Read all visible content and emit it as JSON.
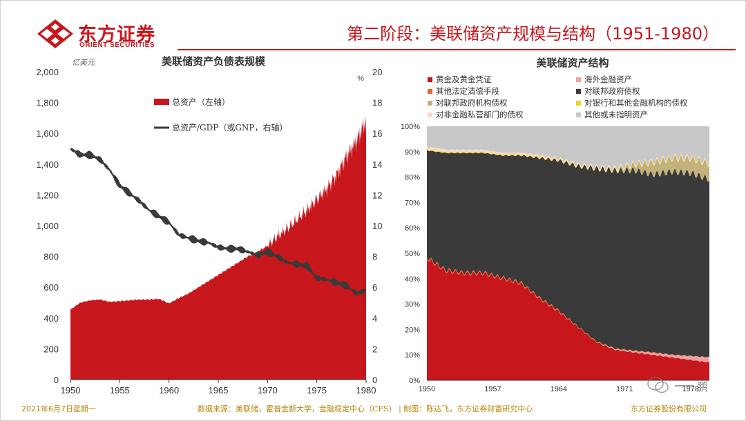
{
  "header": {
    "logo_cn": "东方证券",
    "logo_en": "ORIENT SECURITIES",
    "title": "第二阶段：美联储资产规模与结构（1951-1980）"
  },
  "footer": {
    "date": "2021年6月7日星期一",
    "source": "数据来源：美联储，霍普金斯大学，金融稳定中心（CFS）  | 制图：陈达飞，东方证券财富研究中心",
    "company": "东方证券股份有限公司"
  },
  "watermark": {
    "text": "鹏"
  },
  "colors": {
    "brand_red": "#c8161d",
    "dark_grey": "#3a3a3a",
    "tan": "#c4b27c",
    "light_grey": "#c8c8c8",
    "gold": "#b8860b"
  },
  "chart_data": [
    {
      "type": "area",
      "title": "美联储资产负债表规模",
      "left_unit": "亿美元",
      "right_unit": "%",
      "left_ylim": [
        0,
        2000
      ],
      "right_ylim": [
        0,
        20
      ],
      "left_ticks": [
        "0",
        "200",
        "400",
        "600",
        "800",
        "1,000",
        "1,200",
        "1,400",
        "1,600",
        "1,800",
        "2,000"
      ],
      "right_ticks": [
        "0",
        "2",
        "4",
        "6",
        "8",
        "10",
        "12",
        "14",
        "16",
        "18",
        "20"
      ],
      "x_ticks": [
        "1950",
        "1955",
        "1960",
        "1965",
        "1970",
        "1975",
        "1980"
      ],
      "xlim": [
        1950,
        1980
      ],
      "legend_area": "总资产（左轴）",
      "legend_line": "总资产/GDP（或GNP，右轴）",
      "series": [
        {
          "name": "总资产（左轴）",
          "kind": "area",
          "axis": "left",
          "color": "#c8161d",
          "x": [
            1950,
            1951,
            1952,
            1953,
            1954,
            1955,
            1956,
            1957,
            1958,
            1959,
            1960,
            1961,
            1962,
            1963,
            1964,
            1965,
            1966,
            1967,
            1968,
            1969,
            1970,
            1971,
            1972,
            1973,
            1974,
            1975,
            1976,
            1977,
            1978,
            1979,
            1980
          ],
          "values": [
            455,
            500,
            515,
            520,
            505,
            510,
            515,
            520,
            520,
            525,
            495,
            530,
            560,
            600,
            640,
            680,
            720,
            760,
            800,
            830,
            870,
            930,
            980,
            1040,
            1100,
            1170,
            1240,
            1330,
            1450,
            1550,
            1680
          ]
        },
        {
          "name": "总资产/GDP（或GNP，右轴）",
          "kind": "line",
          "axis": "right",
          "color": "#3a3a3a",
          "x": [
            1950,
            1951,
            1952,
            1953,
            1954,
            1955,
            1956,
            1957,
            1958,
            1959,
            1960,
            1961,
            1962,
            1963,
            1964,
            1965,
            1966,
            1967,
            1968,
            1969,
            1970,
            1971,
            1972,
            1973,
            1974,
            1975,
            1976,
            1977,
            1978,
            1979,
            1980
          ],
          "values": [
            15.0,
            14.6,
            14.6,
            14.3,
            13.6,
            12.6,
            12.1,
            11.6,
            11.0,
            10.6,
            10.2,
            9.4,
            9.2,
            9.0,
            8.9,
            8.6,
            8.5,
            8.5,
            8.3,
            8.1,
            8.3,
            8.0,
            7.6,
            7.5,
            7.4,
            6.6,
            6.5,
            6.3,
            6.1,
            5.6,
            5.8
          ]
        }
      ]
    },
    {
      "type": "area",
      "stacked": true,
      "title": "美联储资产结构",
      "ylim": [
        0,
        100
      ],
      "y_ticks": [
        "0%",
        "10%",
        "20%",
        "30%",
        "40%",
        "50%",
        "60%",
        "70%",
        "80%",
        "90%",
        "100%"
      ],
      "x_ticks": [
        "1950",
        "1957",
        "1964",
        "1971",
        "1978"
      ],
      "xlim": [
        1950,
        1980
      ],
      "x": [
        1950,
        1952,
        1954,
        1956,
        1958,
        1960,
        1962,
        1964,
        1966,
        1968,
        1970,
        1972,
        1974,
        1976,
        1978,
        1980
      ],
      "series": [
        {
          "name": "黄金及黄金凭证",
          "color": "#c8161d",
          "values": [
            48,
            43,
            42,
            42,
            40,
            38,
            32,
            27,
            21,
            15,
            12,
            11,
            10,
            9,
            8,
            7
          ]
        },
        {
          "name": "海外金融资产",
          "color": "#f0a0a0",
          "values": [
            0,
            0,
            0,
            0,
            0,
            0,
            0,
            0,
            0,
            0,
            0.3,
            0.5,
            0.8,
            1.0,
            1.5,
            2.0
          ]
        },
        {
          "name": "其他法定清偿手段",
          "color": "#e8652b",
          "values": [
            0.5,
            0.5,
            0.5,
            0.5,
            0.5,
            0.5,
            0.5,
            0.5,
            0.3,
            0.3,
            0.2,
            0.2,
            0.2,
            0.1,
            0.1,
            0.1
          ]
        },
        {
          "name": "对联邦政府债权",
          "color": "#3a3a3a",
          "values": [
            42,
            46,
            47,
            47,
            48,
            50,
            55,
            59,
            63,
            68,
            70,
            71,
            70,
            72,
            72,
            70
          ]
        },
        {
          "name": "对联邦政府机构债权",
          "color": "#c4b27c",
          "values": [
            0,
            0,
            0,
            0,
            0,
            0,
            0,
            0,
            0,
            0,
            0.2,
            2.0,
            4.5,
            5.0,
            5.5,
            6.0
          ]
        },
        {
          "name": "对银行和其他金融机构的债权",
          "color": "#f2d21b",
          "values": [
            0.3,
            0.3,
            0.3,
            0.3,
            0.3,
            0.3,
            0.3,
            0.3,
            0.3,
            0.3,
            0.3,
            0.3,
            0.3,
            0.3,
            0.3,
            0.3
          ]
        },
        {
          "name": "对非金融私营部门的债权",
          "color": "#f8d8c8",
          "values": [
            1.2,
            1.0,
            1.0,
            1.0,
            0.8,
            0.8,
            0.8,
            0.6,
            0.6,
            0.5,
            0.5,
            0.5,
            0.5,
            0.5,
            0.5,
            0.5
          ]
        },
        {
          "name": "其他或未指明资产",
          "color": "#c8c8c8",
          "values": [
            8,
            9,
            9,
            9,
            10,
            10,
            11,
            12,
            14,
            16,
            16,
            14,
            14,
            12,
            12,
            14
          ]
        }
      ]
    }
  ]
}
